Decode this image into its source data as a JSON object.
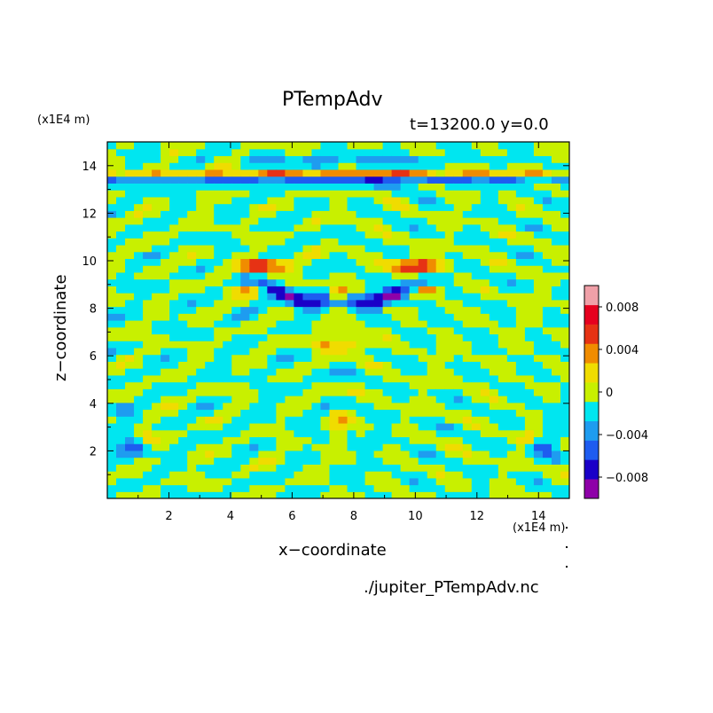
{
  "header": {
    "title": "PTempAdv",
    "subtitle": "t=13200.0 y=0.0",
    "y_unit": "(x1E4 m)",
    "x_unit": "(x1E4 m)",
    "xlabel": "x−coordinate",
    "ylabel": "z−coordinate",
    "source": "./jupiter_PTempAdv.nc"
  },
  "chart_data": {
    "type": "heatmap",
    "title": "PTempAdv",
    "subtitle": "t=13200.0 y=0.0",
    "xlabel": "x−coordinate",
    "ylabel": "z−coordinate",
    "xlim": [
      0,
      15
    ],
    "ylim": [
      0,
      15
    ],
    "x_ticks": [
      2,
      4,
      6,
      8,
      10,
      12,
      14
    ],
    "y_ticks": [
      2,
      4,
      6,
      8,
      10,
      12,
      14
    ],
    "colorbar": {
      "levels": [
        -0.01,
        -0.008,
        -0.006,
        -0.004,
        -0.002,
        0,
        0.002,
        0.004,
        0.006,
        0.008,
        0.01
      ],
      "colors": [
        "#8e00a8",
        "#1a00c8",
        "#1e5cf0",
        "#1e9cf0",
        "#00e6f0",
        "#c8f000",
        "#f0dc00",
        "#f08c00",
        "#e63214",
        "#e6001e",
        "#f0a0a8"
      ],
      "tick_values": [
        -0.008,
        -0.004,
        0,
        0.004,
        0.008
      ],
      "tick_labels": [
        "−0.008",
        "−0.004",
        "0",
        "0.004",
        "0.008"
      ]
    }
  }
}
